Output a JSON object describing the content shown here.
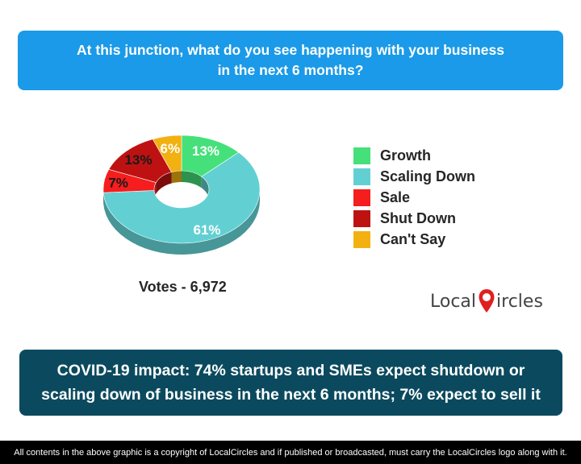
{
  "question": {
    "line1": "At this junction, what do you see happening with your business",
    "line2": "in the next 6 months?"
  },
  "chart_data": {
    "type": "pie",
    "title": "At this junction, what do you see happening with your business in the next 6 months?",
    "categories": [
      "Growth",
      "Scaling Down",
      "Sale",
      "Shut Down",
      "Can't Say"
    ],
    "values": [
      13,
      61,
      7,
      13,
      6
    ],
    "labels": [
      "13%",
      "61%",
      "7%",
      "13%",
      "6%"
    ],
    "colors": [
      "#45e07a",
      "#62d0d3",
      "#f51d1d",
      "#be1212",
      "#f2b111"
    ],
    "style": "3d-donut",
    "legend_position": "right"
  },
  "votes": "Votes - 6,972",
  "logo": {
    "text_before": "Local",
    "text_after": "ircles",
    "pin_color": "#e02020",
    "text_color": "#444444"
  },
  "headline": {
    "line1": "COVID-19 impact: 74% startups and SMEs expect shutdown or",
    "line2": "scaling down of business in the next 6 months; 7% expect to sell it"
  },
  "footer": "All contents in the above graphic is a copyright of LocalCircles and if published or broadcasted, must carry the LocalCircles logo along with it."
}
